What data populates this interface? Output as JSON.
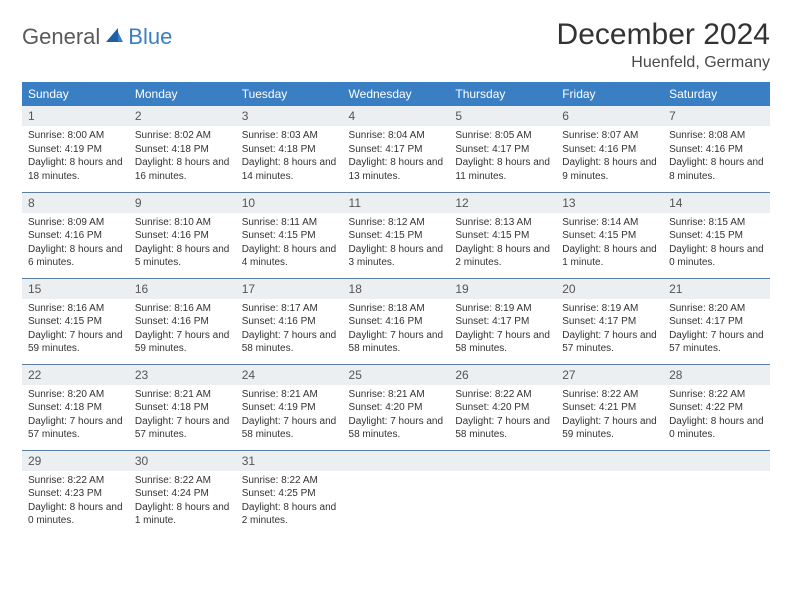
{
  "brand": {
    "part1": "General",
    "part2": "Blue"
  },
  "title": "December 2024",
  "location": "Huenfeld, Germany",
  "colors": {
    "header_bg": "#3a7fc4",
    "header_text": "#ffffff",
    "daynum_bg": "#eceff1",
    "cell_text": "#333333",
    "border": "#5a7fa0",
    "page_bg": "#ffffff",
    "logo_gray": "#5a5a5a",
    "logo_blue": "#3a7fc4",
    "title_color": "#333333"
  },
  "typography": {
    "title_fontsize": 30,
    "subtitle_fontsize": 16,
    "header_fontsize": 12,
    "daynum_fontsize": 12,
    "body_fontsize": 10
  },
  "week_headers": [
    "Sunday",
    "Monday",
    "Tuesday",
    "Wednesday",
    "Thursday",
    "Friday",
    "Saturday"
  ],
  "weeks": [
    [
      {
        "day": "1",
        "sunrise": "Sunrise: 8:00 AM",
        "sunset": "Sunset: 4:19 PM",
        "daylight": "Daylight: 8 hours and 18 minutes."
      },
      {
        "day": "2",
        "sunrise": "Sunrise: 8:02 AM",
        "sunset": "Sunset: 4:18 PM",
        "daylight": "Daylight: 8 hours and 16 minutes."
      },
      {
        "day": "3",
        "sunrise": "Sunrise: 8:03 AM",
        "sunset": "Sunset: 4:18 PM",
        "daylight": "Daylight: 8 hours and 14 minutes."
      },
      {
        "day": "4",
        "sunrise": "Sunrise: 8:04 AM",
        "sunset": "Sunset: 4:17 PM",
        "daylight": "Daylight: 8 hours and 13 minutes."
      },
      {
        "day": "5",
        "sunrise": "Sunrise: 8:05 AM",
        "sunset": "Sunset: 4:17 PM",
        "daylight": "Daylight: 8 hours and 11 minutes."
      },
      {
        "day": "6",
        "sunrise": "Sunrise: 8:07 AM",
        "sunset": "Sunset: 4:16 PM",
        "daylight": "Daylight: 8 hours and 9 minutes."
      },
      {
        "day": "7",
        "sunrise": "Sunrise: 8:08 AM",
        "sunset": "Sunset: 4:16 PM",
        "daylight": "Daylight: 8 hours and 8 minutes."
      }
    ],
    [
      {
        "day": "8",
        "sunrise": "Sunrise: 8:09 AM",
        "sunset": "Sunset: 4:16 PM",
        "daylight": "Daylight: 8 hours and 6 minutes."
      },
      {
        "day": "9",
        "sunrise": "Sunrise: 8:10 AM",
        "sunset": "Sunset: 4:16 PM",
        "daylight": "Daylight: 8 hours and 5 minutes."
      },
      {
        "day": "10",
        "sunrise": "Sunrise: 8:11 AM",
        "sunset": "Sunset: 4:15 PM",
        "daylight": "Daylight: 8 hours and 4 minutes."
      },
      {
        "day": "11",
        "sunrise": "Sunrise: 8:12 AM",
        "sunset": "Sunset: 4:15 PM",
        "daylight": "Daylight: 8 hours and 3 minutes."
      },
      {
        "day": "12",
        "sunrise": "Sunrise: 8:13 AM",
        "sunset": "Sunset: 4:15 PM",
        "daylight": "Daylight: 8 hours and 2 minutes."
      },
      {
        "day": "13",
        "sunrise": "Sunrise: 8:14 AM",
        "sunset": "Sunset: 4:15 PM",
        "daylight": "Daylight: 8 hours and 1 minute."
      },
      {
        "day": "14",
        "sunrise": "Sunrise: 8:15 AM",
        "sunset": "Sunset: 4:15 PM",
        "daylight": "Daylight: 8 hours and 0 minutes."
      }
    ],
    [
      {
        "day": "15",
        "sunrise": "Sunrise: 8:16 AM",
        "sunset": "Sunset: 4:15 PM",
        "daylight": "Daylight: 7 hours and 59 minutes."
      },
      {
        "day": "16",
        "sunrise": "Sunrise: 8:16 AM",
        "sunset": "Sunset: 4:16 PM",
        "daylight": "Daylight: 7 hours and 59 minutes."
      },
      {
        "day": "17",
        "sunrise": "Sunrise: 8:17 AM",
        "sunset": "Sunset: 4:16 PM",
        "daylight": "Daylight: 7 hours and 58 minutes."
      },
      {
        "day": "18",
        "sunrise": "Sunrise: 8:18 AM",
        "sunset": "Sunset: 4:16 PM",
        "daylight": "Daylight: 7 hours and 58 minutes."
      },
      {
        "day": "19",
        "sunrise": "Sunrise: 8:19 AM",
        "sunset": "Sunset: 4:17 PM",
        "daylight": "Daylight: 7 hours and 58 minutes."
      },
      {
        "day": "20",
        "sunrise": "Sunrise: 8:19 AM",
        "sunset": "Sunset: 4:17 PM",
        "daylight": "Daylight: 7 hours and 57 minutes."
      },
      {
        "day": "21",
        "sunrise": "Sunrise: 8:20 AM",
        "sunset": "Sunset: 4:17 PM",
        "daylight": "Daylight: 7 hours and 57 minutes."
      }
    ],
    [
      {
        "day": "22",
        "sunrise": "Sunrise: 8:20 AM",
        "sunset": "Sunset: 4:18 PM",
        "daylight": "Daylight: 7 hours and 57 minutes."
      },
      {
        "day": "23",
        "sunrise": "Sunrise: 8:21 AM",
        "sunset": "Sunset: 4:18 PM",
        "daylight": "Daylight: 7 hours and 57 minutes."
      },
      {
        "day": "24",
        "sunrise": "Sunrise: 8:21 AM",
        "sunset": "Sunset: 4:19 PM",
        "daylight": "Daylight: 7 hours and 58 minutes."
      },
      {
        "day": "25",
        "sunrise": "Sunrise: 8:21 AM",
        "sunset": "Sunset: 4:20 PM",
        "daylight": "Daylight: 7 hours and 58 minutes."
      },
      {
        "day": "26",
        "sunrise": "Sunrise: 8:22 AM",
        "sunset": "Sunset: 4:20 PM",
        "daylight": "Daylight: 7 hours and 58 minutes."
      },
      {
        "day": "27",
        "sunrise": "Sunrise: 8:22 AM",
        "sunset": "Sunset: 4:21 PM",
        "daylight": "Daylight: 7 hours and 59 minutes."
      },
      {
        "day": "28",
        "sunrise": "Sunrise: 8:22 AM",
        "sunset": "Sunset: 4:22 PM",
        "daylight": "Daylight: 8 hours and 0 minutes."
      }
    ],
    [
      {
        "day": "29",
        "sunrise": "Sunrise: 8:22 AM",
        "sunset": "Sunset: 4:23 PM",
        "daylight": "Daylight: 8 hours and 0 minutes."
      },
      {
        "day": "30",
        "sunrise": "Sunrise: 8:22 AM",
        "sunset": "Sunset: 4:24 PM",
        "daylight": "Daylight: 8 hours and 1 minute."
      },
      {
        "day": "31",
        "sunrise": "Sunrise: 8:22 AM",
        "sunset": "Sunset: 4:25 PM",
        "daylight": "Daylight: 8 hours and 2 minutes."
      },
      {
        "day": ""
      },
      {
        "day": ""
      },
      {
        "day": ""
      },
      {
        "day": ""
      }
    ]
  ]
}
